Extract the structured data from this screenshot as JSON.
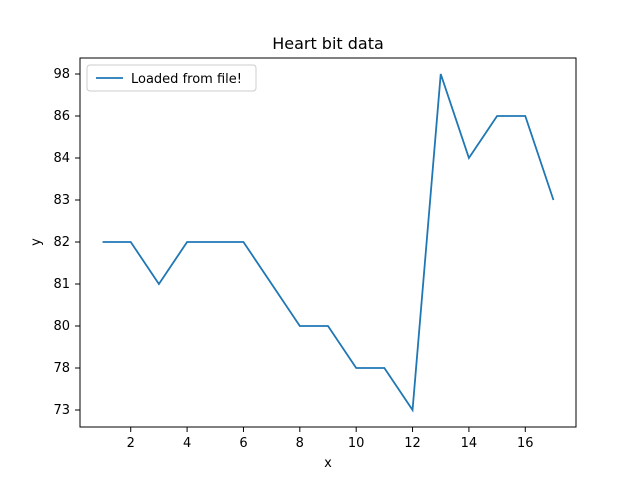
{
  "chart_data": {
    "type": "line",
    "title": "Heart bit data",
    "xlabel": "x",
    "ylabel": "y",
    "xlim": [
      0.2,
      17.8
    ],
    "x_ticks": [
      2,
      4,
      6,
      8,
      10,
      12,
      14,
      16
    ],
    "y_categories": [
      "73",
      "78",
      "80",
      "81",
      "82",
      "83",
      "84",
      "86",
      "98"
    ],
    "series": [
      {
        "name": "Loaded from file!",
        "color": "#1f77b4",
        "x": [
          1,
          2,
          3,
          4,
          5,
          6,
          7,
          8,
          9,
          10,
          11,
          12,
          13,
          14,
          15,
          16,
          17
        ],
        "y": [
          "82",
          "82",
          "81",
          "82",
          "82",
          "82",
          "81",
          "80",
          "80",
          "78",
          "78",
          "73",
          "98",
          "84",
          "86",
          "86",
          "83"
        ]
      }
    ],
    "legend": {
      "position": "top-left"
    },
    "grid": false
  }
}
